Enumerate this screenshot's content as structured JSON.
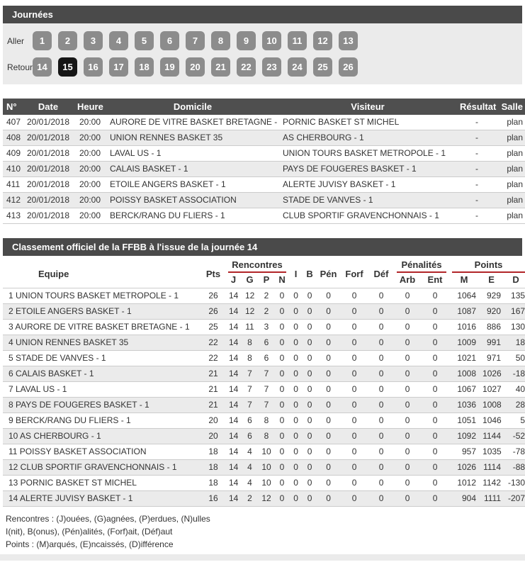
{
  "colors": {
    "bar_bg": "#4a4a4a",
    "table_head_bg": "#4f4f4f",
    "panel_bg": "#ebebeb",
    "row_alt_bg": "#ebebeb",
    "button_bg": "#8c8c8c",
    "button_selected_bg": "#161616",
    "accent_red": "#b22528",
    "text": "#333333"
  },
  "journees": {
    "title": "Journées",
    "aller_label": "Aller",
    "retour_label": "Retour",
    "aller": [
      "1",
      "2",
      "3",
      "4",
      "5",
      "6",
      "7",
      "8",
      "9",
      "10",
      "11",
      "12",
      "13"
    ],
    "retour": [
      "14",
      "15",
      "16",
      "17",
      "18",
      "19",
      "20",
      "21",
      "22",
      "23",
      "24",
      "25",
      "26"
    ],
    "selected": "15"
  },
  "results": {
    "columns": [
      "N°",
      "Date",
      "Heure",
      "Domicile",
      "Visiteur",
      "Résultat",
      "Salle"
    ],
    "rows": [
      [
        "407",
        "20/01/2018",
        "20:00",
        "AURORE DE VITRE BASKET BRETAGNE - 1",
        "PORNIC BASKET ST MICHEL",
        "-",
        "plan"
      ],
      [
        "408",
        "20/01/2018",
        "20:00",
        "UNION RENNES BASKET 35",
        "AS CHERBOURG - 1",
        "-",
        "plan"
      ],
      [
        "409",
        "20/01/2018",
        "20:00",
        "LAVAL US - 1",
        "UNION TOURS BASKET METROPOLE - 1",
        "-",
        "plan"
      ],
      [
        "410",
        "20/01/2018",
        "20:00",
        "CALAIS BASKET - 1",
        "PAYS DE FOUGERES BASKET - 1",
        "-",
        "plan"
      ],
      [
        "411",
        "20/01/2018",
        "20:00",
        "ETOILE ANGERS BASKET - 1",
        "ALERTE JUVISY BASKET - 1",
        "-",
        "plan"
      ],
      [
        "412",
        "20/01/2018",
        "20:00",
        "POISSY BASKET ASSOCIATION",
        "STADE DE VANVES - 1",
        "-",
        "plan"
      ],
      [
        "413",
        "20/01/2018",
        "20:00",
        "BERCK/RANG DU FLIERS - 1",
        "CLUB SPORTIF GRAVENCHONNAIS - 1",
        "-",
        "plan"
      ]
    ]
  },
  "classement": {
    "title": "Classement officiel de la FFBB à l'issue de la journée 14",
    "headers": {
      "equipe": "Equipe",
      "pts": "Pts",
      "rencontres": "Rencontres",
      "j": "J",
      "g": "G",
      "p": "P",
      "n": "N",
      "i": "I",
      "b": "B",
      "pen": "Pén",
      "forf": "Forf",
      "def": "Déf",
      "penalites": "Pénalités",
      "arb": "Arb",
      "ent": "Ent",
      "points": "Points",
      "m": "M",
      "e": "E",
      "d": "D"
    },
    "rows": [
      {
        "rank": "1",
        "team": "UNION TOURS BASKET METROPOLE - 1",
        "pts": "26",
        "j": "14",
        "g": "12",
        "p": "2",
        "n": "0",
        "i": "0",
        "b": "0",
        "pen": "0",
        "forf": "0",
        "def": "0",
        "arb": "0",
        "ent": "0",
        "m": "1064",
        "e": "929",
        "d": "135"
      },
      {
        "rank": "2",
        "team": "ETOILE ANGERS BASKET - 1",
        "pts": "26",
        "j": "14",
        "g": "12",
        "p": "2",
        "n": "0",
        "i": "0",
        "b": "0",
        "pen": "0",
        "forf": "0",
        "def": "0",
        "arb": "0",
        "ent": "0",
        "m": "1087",
        "e": "920",
        "d": "167"
      },
      {
        "rank": "3",
        "team": "AURORE DE VITRE BASKET BRETAGNE - 1",
        "pts": "25",
        "j": "14",
        "g": "11",
        "p": "3",
        "n": "0",
        "i": "0",
        "b": "0",
        "pen": "0",
        "forf": "0",
        "def": "0",
        "arb": "0",
        "ent": "0",
        "m": "1016",
        "e": "886",
        "d": "130"
      },
      {
        "rank": "4",
        "team": "UNION RENNES BASKET 35",
        "pts": "22",
        "j": "14",
        "g": "8",
        "p": "6",
        "n": "0",
        "i": "0",
        "b": "0",
        "pen": "0",
        "forf": "0",
        "def": "0",
        "arb": "0",
        "ent": "0",
        "m": "1009",
        "e": "991",
        "d": "18"
      },
      {
        "rank": "5",
        "team": "STADE DE VANVES - 1",
        "pts": "22",
        "j": "14",
        "g": "8",
        "p": "6",
        "n": "0",
        "i": "0",
        "b": "0",
        "pen": "0",
        "forf": "0",
        "def": "0",
        "arb": "0",
        "ent": "0",
        "m": "1021",
        "e": "971",
        "d": "50"
      },
      {
        "rank": "6",
        "team": "CALAIS BASKET - 1",
        "pts": "21",
        "j": "14",
        "g": "7",
        "p": "7",
        "n": "0",
        "i": "0",
        "b": "0",
        "pen": "0",
        "forf": "0",
        "def": "0",
        "arb": "0",
        "ent": "0",
        "m": "1008",
        "e": "1026",
        "d": "-18"
      },
      {
        "rank": "7",
        "team": "LAVAL US - 1",
        "pts": "21",
        "j": "14",
        "g": "7",
        "p": "7",
        "n": "0",
        "i": "0",
        "b": "0",
        "pen": "0",
        "forf": "0",
        "def": "0",
        "arb": "0",
        "ent": "0",
        "m": "1067",
        "e": "1027",
        "d": "40"
      },
      {
        "rank": "8",
        "team": "PAYS DE FOUGERES BASKET - 1",
        "pts": "21",
        "j": "14",
        "g": "7",
        "p": "7",
        "n": "0",
        "i": "0",
        "b": "0",
        "pen": "0",
        "forf": "0",
        "def": "0",
        "arb": "0",
        "ent": "0",
        "m": "1036",
        "e": "1008",
        "d": "28"
      },
      {
        "rank": "9",
        "team": "BERCK/RANG DU FLIERS - 1",
        "pts": "20",
        "j": "14",
        "g": "6",
        "p": "8",
        "n": "0",
        "i": "0",
        "b": "0",
        "pen": "0",
        "forf": "0",
        "def": "0",
        "arb": "0",
        "ent": "0",
        "m": "1051",
        "e": "1046",
        "d": "5"
      },
      {
        "rank": "10",
        "team": "AS CHERBOURG - 1",
        "pts": "20",
        "j": "14",
        "g": "6",
        "p": "8",
        "n": "0",
        "i": "0",
        "b": "0",
        "pen": "0",
        "forf": "0",
        "def": "0",
        "arb": "0",
        "ent": "0",
        "m": "1092",
        "e": "1144",
        "d": "-52"
      },
      {
        "rank": "11",
        "team": "POISSY BASKET ASSOCIATION",
        "pts": "18",
        "j": "14",
        "g": "4",
        "p": "10",
        "n": "0",
        "i": "0",
        "b": "0",
        "pen": "0",
        "forf": "0",
        "def": "0",
        "arb": "0",
        "ent": "0",
        "m": "957",
        "e": "1035",
        "d": "-78"
      },
      {
        "rank": "12",
        "team": "CLUB SPORTIF GRAVENCHONNAIS - 1",
        "pts": "18",
        "j": "14",
        "g": "4",
        "p": "10",
        "n": "0",
        "i": "0",
        "b": "0",
        "pen": "0",
        "forf": "0",
        "def": "0",
        "arb": "0",
        "ent": "0",
        "m": "1026",
        "e": "1114",
        "d": "-88"
      },
      {
        "rank": "13",
        "team": "PORNIC BASKET ST MICHEL",
        "pts": "18",
        "j": "14",
        "g": "4",
        "p": "10",
        "n": "0",
        "i": "0",
        "b": "0",
        "pen": "0",
        "forf": "0",
        "def": "0",
        "arb": "0",
        "ent": "0",
        "m": "1012",
        "e": "1142",
        "d": "-130"
      },
      {
        "rank": "14",
        "team": "ALERTE JUVISY BASKET - 1",
        "pts": "16",
        "j": "14",
        "g": "2",
        "p": "12",
        "n": "0",
        "i": "0",
        "b": "0",
        "pen": "0",
        "forf": "0",
        "def": "0",
        "arb": "0",
        "ent": "0",
        "m": "904",
        "e": "1111",
        "d": "-207"
      }
    ]
  },
  "legend": {
    "lines": [
      "Rencontres : (J)ouées, (G)agnées, (P)erdues, (N)ulles",
      "I(nit), B(onus), (Pén)alités, (Forf)ait, (Déf)aut",
      "Points : (M)arqués, (E)ncaissés, (D)ifférence"
    ]
  }
}
